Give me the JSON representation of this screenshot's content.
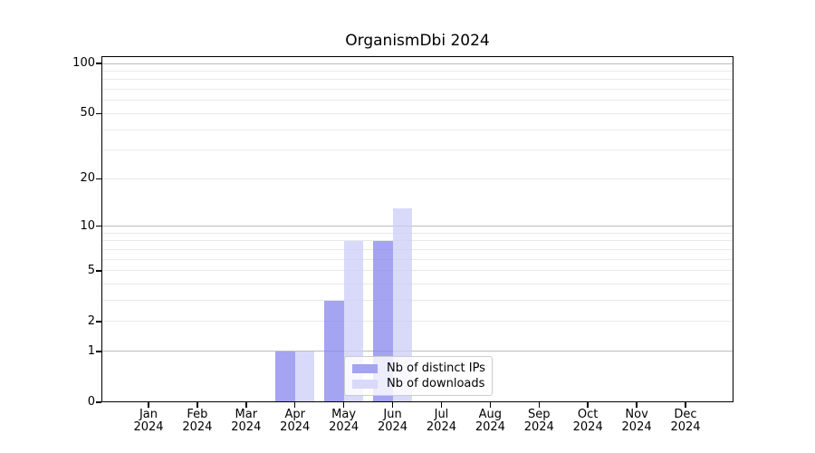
{
  "chart_data": {
    "type": "bar",
    "title": "OrganismDbi 2024",
    "categories": [
      {
        "month": "Jan",
        "year": "2024"
      },
      {
        "month": "Feb",
        "year": "2024"
      },
      {
        "month": "Mar",
        "year": "2024"
      },
      {
        "month": "Apr",
        "year": "2024"
      },
      {
        "month": "May",
        "year": "2024"
      },
      {
        "month": "Jun",
        "year": "2024"
      },
      {
        "month": "Jul",
        "year": "2024"
      },
      {
        "month": "Aug",
        "year": "2024"
      },
      {
        "month": "Sep",
        "year": "2024"
      },
      {
        "month": "Oct",
        "year": "2024"
      },
      {
        "month": "Nov",
        "year": "2024"
      },
      {
        "month": "Dec",
        "year": "2024"
      }
    ],
    "series": [
      {
        "name": "Nb of distinct IPs",
        "color": "rgba(134,134,238,0.75)",
        "legend_color": "#a4a4f2",
        "values": [
          0,
          0,
          0,
          1,
          3,
          8,
          0,
          0,
          0,
          0,
          0,
          0
        ]
      },
      {
        "name": "Nb of downloads",
        "color": "rgba(204,204,248,0.75)",
        "legend_color": "#d9d9fa",
        "values": [
          0,
          0,
          0,
          1,
          8,
          13,
          0,
          0,
          0,
          0,
          0,
          0
        ]
      }
    ],
    "yscale": "log10(1+x)",
    "ylim": [
      0,
      110
    ],
    "yticks": [
      {
        "value": 100,
        "label": "100"
      },
      {
        "value": 50,
        "label": "50"
      },
      {
        "value": 20,
        "label": "20"
      },
      {
        "value": 10,
        "label": "10"
      },
      {
        "value": 5,
        "label": "5"
      },
      {
        "value": 2,
        "label": "2"
      },
      {
        "value": 1,
        "label": "1"
      },
      {
        "value": 0,
        "label": "0"
      }
    ],
    "major_gridlines": [
      1,
      10,
      100
    ],
    "minor_gridlines": [
      2,
      3,
      4,
      5,
      6,
      7,
      8,
      9,
      20,
      30,
      40,
      50,
      60,
      70,
      80,
      90
    ],
    "grid": true,
    "legend_position": "bottom-center",
    "colors": {
      "major_grid": "#bcbcbc",
      "minor_grid": "#e9e9e9",
      "axis": "#000000",
      "legend_border": "#cccccc",
      "legend_bg": "rgba(255,255,255,0.8)"
    }
  }
}
